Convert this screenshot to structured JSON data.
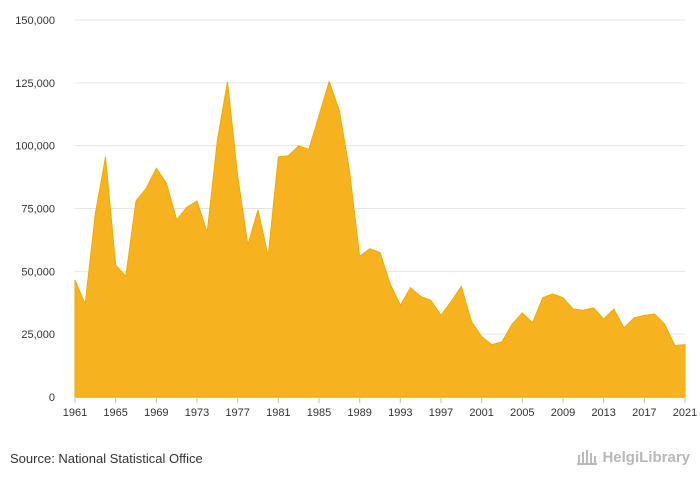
{
  "source_text": "Source: National Statistical Office",
  "logo_text": "HelgiLibrary",
  "colors": {
    "area_fill": "#f7b31f",
    "area_stroke": "#f2aa00",
    "grid": "#e6e6e6",
    "axis": "#c0c0c0",
    "text": "#333333"
  },
  "chart_data": {
    "type": "area",
    "title": "",
    "xlabel": "",
    "ylabel": "",
    "ylim": [
      0,
      150000
    ],
    "yticks": [
      0,
      25000,
      50000,
      75000,
      100000,
      125000,
      150000
    ],
    "ytick_labels": [
      "0",
      "25,000",
      "50,000",
      "75,000",
      "100,000",
      "125,000",
      "150,000"
    ],
    "xticks": [
      1961,
      1965,
      1969,
      1973,
      1977,
      1981,
      1985,
      1989,
      1993,
      1997,
      2001,
      2005,
      2009,
      2013,
      2017,
      2021
    ],
    "grid": true,
    "legend": "none",
    "x": [
      1961,
      1962,
      1963,
      1964,
      1965,
      1966,
      1967,
      1968,
      1969,
      1970,
      1971,
      1972,
      1973,
      1974,
      1975,
      1976,
      1977,
      1978,
      1979,
      1980,
      1981,
      1982,
      1983,
      1984,
      1985,
      1986,
      1987,
      1988,
      1989,
      1990,
      1991,
      1992,
      1993,
      1994,
      1995,
      1996,
      1997,
      1998,
      1999,
      2000,
      2001,
      2002,
      2003,
      2004,
      2005,
      2006,
      2007,
      2008,
      2009,
      2010,
      2011,
      2012,
      2013,
      2014,
      2015,
      2016,
      2017,
      2018,
      2019,
      2020,
      2021
    ],
    "values": [
      46500,
      37000,
      73000,
      95500,
      52500,
      48000,
      78000,
      83000,
      91000,
      85000,
      70500,
      75500,
      78000,
      65500,
      102000,
      125500,
      88000,
      60500,
      74500,
      56000,
      95500,
      96000,
      100000,
      98500,
      112000,
      125500,
      114000,
      90000,
      56000,
      59000,
      57500,
      45000,
      36500,
      43500,
      40000,
      38500,
      32500,
      38000,
      44000,
      30000,
      24000,
      20800,
      22000,
      29000,
      33500,
      29500,
      39500,
      41000,
      39500,
      35000,
      34500,
      35500,
      31000,
      35000,
      27500,
      31500,
      32500,
      33000,
      29000,
      20500,
      20800
    ]
  }
}
